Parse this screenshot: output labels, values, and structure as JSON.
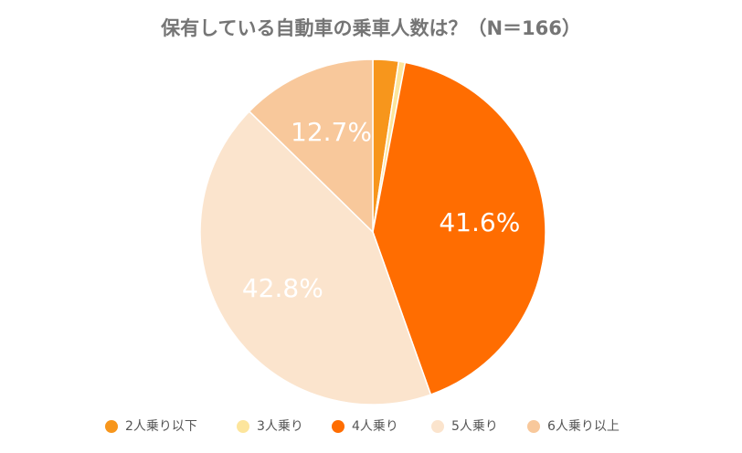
{
  "chart_data": {
    "type": "pie",
    "title": "保有している自動車の乗車人数は？（N＝166）",
    "categories": [
      "2人乗り以下",
      "3人乗り",
      "4人乗り",
      "5人乗り",
      "6人乗り以上"
    ],
    "values": [
      2.4,
      0.6,
      41.6,
      42.8,
      12.7
    ],
    "value_labels": [
      null,
      null,
      "41.6%",
      "42.8%",
      "12.7%"
    ],
    "colors": [
      "#f7961c",
      "#fde59c",
      "#ff6d01",
      "#fbe4cd",
      "#f8c89b"
    ],
    "legend": "bottom"
  }
}
